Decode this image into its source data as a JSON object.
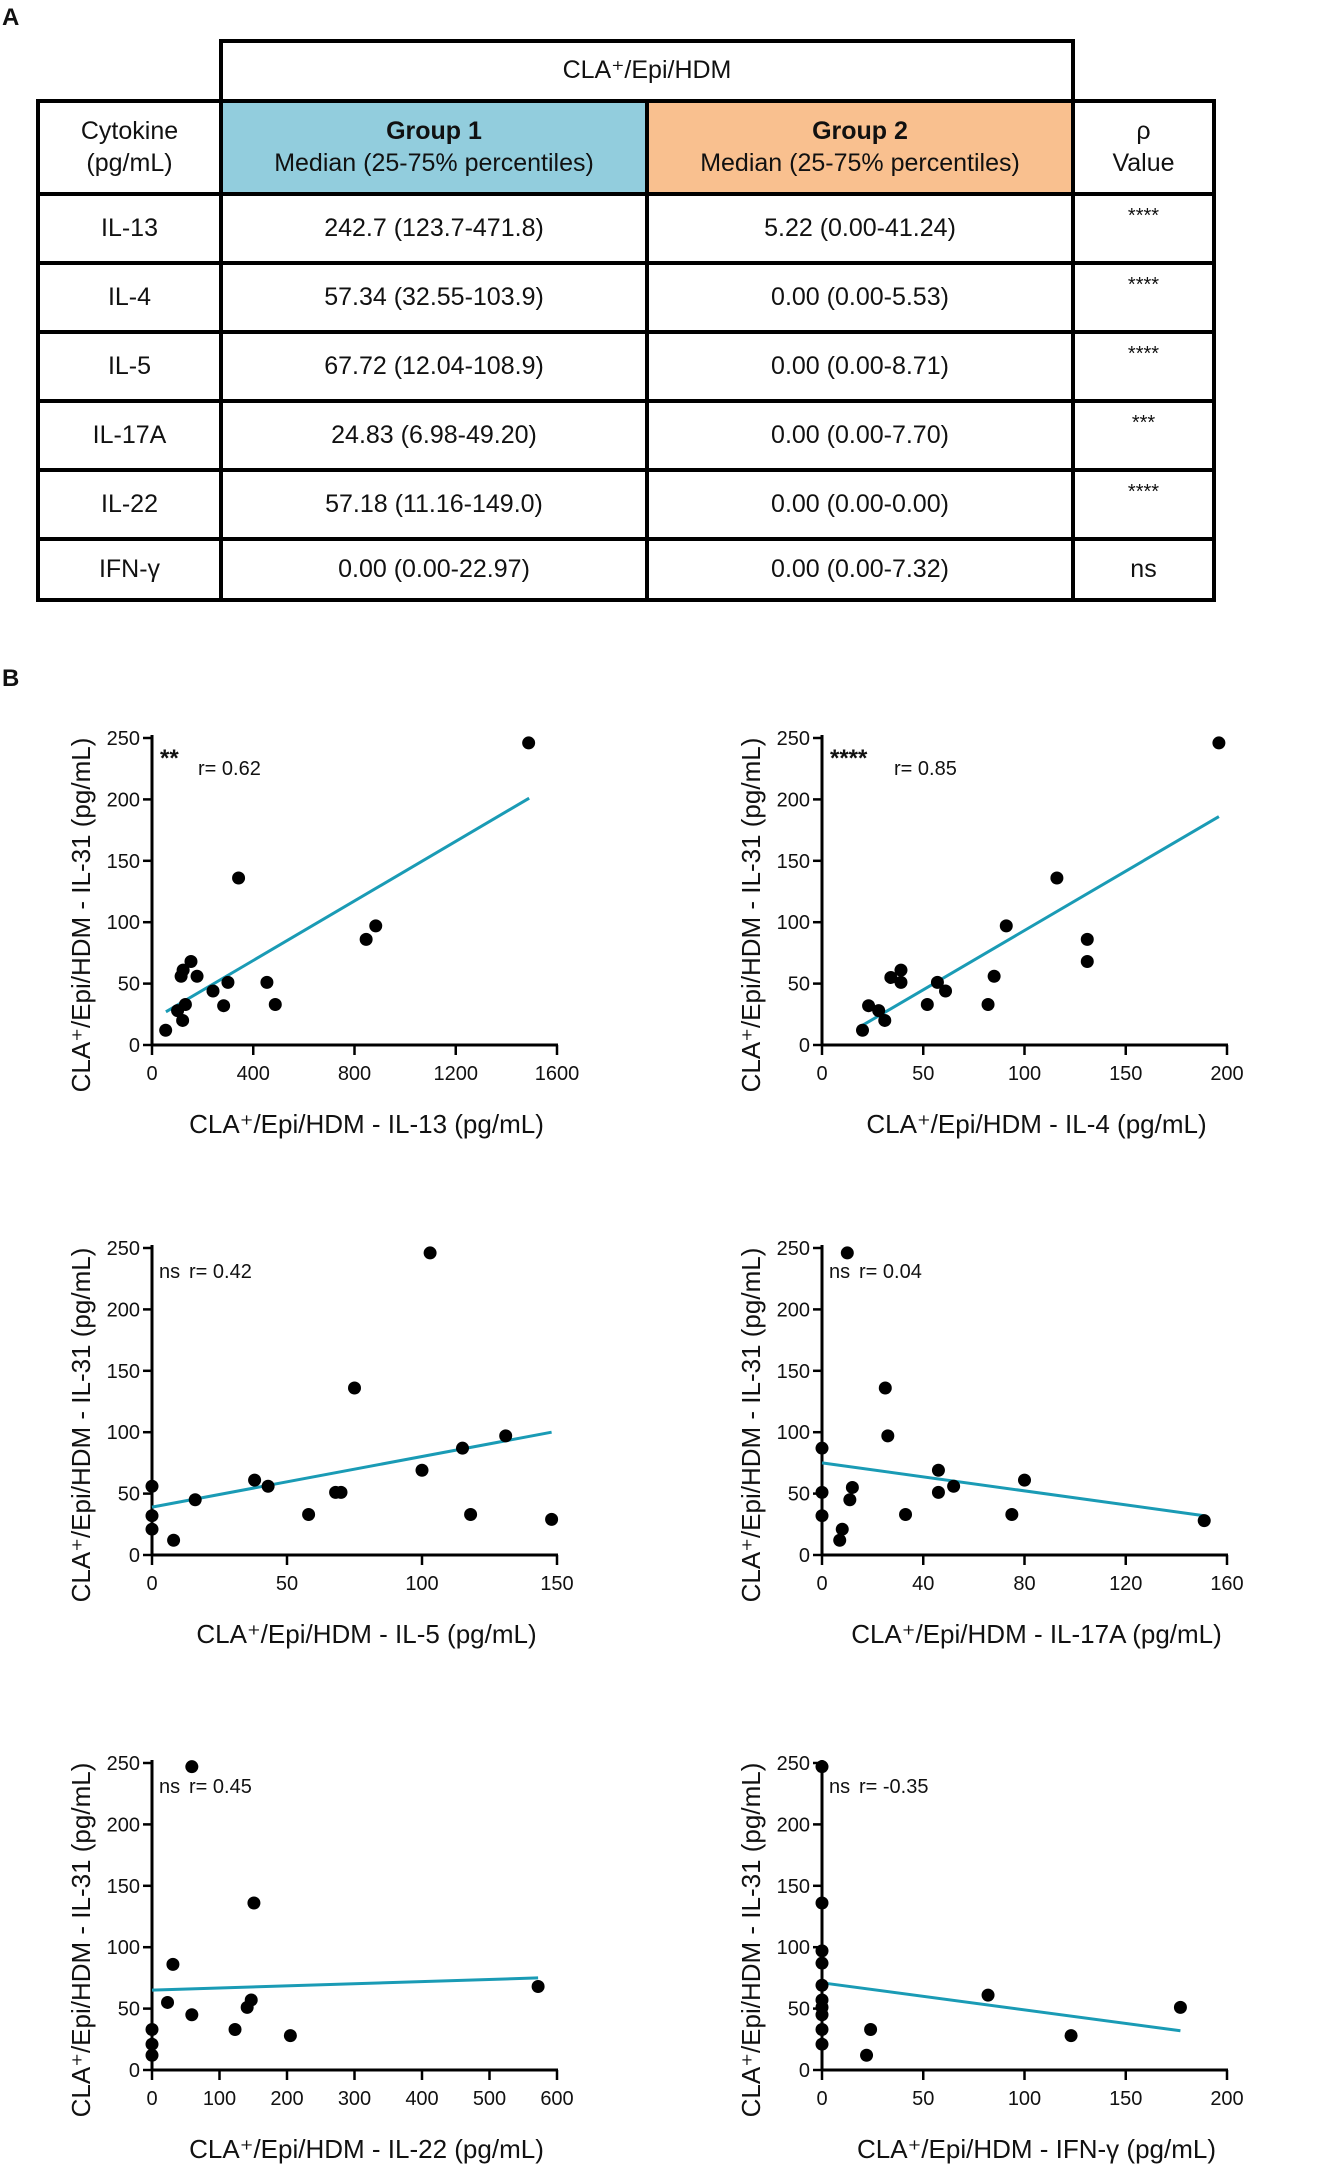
{
  "panels": {
    "a": "A",
    "b": "B"
  },
  "table": {
    "super_header": "CLA⁺/Epi/HDM",
    "col_cytokine": [
      "Cytokine",
      "(pg/mL)"
    ],
    "group1": {
      "title": "Group 1",
      "subtitle": "Median (25-75% percentiles)"
    },
    "group2": {
      "title": "Group 2",
      "subtitle": "Median (25-75% percentiles)"
    },
    "col_p": [
      "ρ",
      "Value"
    ],
    "rows": [
      {
        "cytokine": "IL-13",
        "g1": "242.7 (123.7-471.8)",
        "g2": "5.22 (0.00-41.24)",
        "p": "****"
      },
      {
        "cytokine": "IL-4",
        "g1": "57.34 (32.55-103.9)",
        "g2": "0.00 (0.00-5.53)",
        "p": "****"
      },
      {
        "cytokine": "IL-5",
        "g1": "67.72 (12.04-108.9)",
        "g2": "0.00 (0.00-8.71)",
        "p": "****"
      },
      {
        "cytokine": "IL-17A",
        "g1": "24.83 (6.98-49.20)",
        "g2": "0.00 (0.00-7.70)",
        "p": "***"
      },
      {
        "cytokine": "IL-22",
        "g1": "57.18 (11.16-149.0)",
        "g2": "0.00 (0.00-0.00)",
        "p": "****"
      },
      {
        "cytokine": "IFN-γ",
        "g1": "0.00 (0.00-22.97)",
        "g2": "0.00 (0.00-7.32)",
        "p": "ns"
      }
    ],
    "colors": {
      "group1": "#92cddd",
      "group2": "#f9c08f"
    }
  },
  "chart_data": [
    {
      "type": "scatter",
      "xlabel": "CLA⁺/Epi/HDM - IL-13 (pg/mL)",
      "ylabel": "CLA⁺/Epi/HDM - IL-31 (pg/mL)",
      "sig": "**",
      "r": "r= 0.62",
      "xlim": [
        0,
        1600
      ],
      "ylim": [
        0,
        250
      ],
      "xticks": [
        0,
        400,
        800,
        1200,
        1600
      ],
      "yticks": [
        0,
        50,
        100,
        150,
        200,
        250
      ],
      "points": [
        [
          1488,
          246
        ],
        [
          342,
          136
        ],
        [
          846,
          86
        ],
        [
          884,
          97
        ],
        [
          154,
          68
        ],
        [
          123,
          61
        ],
        [
          115,
          56
        ],
        [
          178,
          56
        ],
        [
          241,
          44
        ],
        [
          300,
          51
        ],
        [
          454,
          51
        ],
        [
          487,
          33
        ],
        [
          283,
          32
        ],
        [
          132,
          33
        ],
        [
          101,
          28
        ],
        [
          121,
          20
        ],
        [
          54,
          12
        ]
      ],
      "fit": [
        [
          55,
          27
        ],
        [
          1490,
          201
        ]
      ],
      "line_color": "#1a9bb5"
    },
    {
      "type": "scatter",
      "xlabel": "CLA⁺/Epi/HDM - IL-4 (pg/mL)",
      "ylabel": "CLA⁺/Epi/HDM - IL-31 (pg/mL)",
      "sig": "****",
      "r": "r= 0.85",
      "xlim": [
        0,
        200
      ],
      "ylim": [
        0,
        250
      ],
      "xticks": [
        0,
        50,
        100,
        150,
        200
      ],
      "yticks": [
        0,
        50,
        100,
        150,
        200,
        250
      ],
      "points": [
        [
          196,
          246
        ],
        [
          116,
          136
        ],
        [
          91,
          97
        ],
        [
          131,
          86
        ],
        [
          131,
          68
        ],
        [
          85,
          56
        ],
        [
          82,
          33
        ],
        [
          57,
          51
        ],
        [
          61,
          44
        ],
        [
          52,
          33
        ],
        [
          39,
          61
        ],
        [
          39,
          51
        ],
        [
          34,
          55
        ],
        [
          23,
          32
        ],
        [
          28,
          28
        ],
        [
          31,
          20
        ],
        [
          20,
          12
        ]
      ],
      "fit": [
        [
          20,
          16
        ],
        [
          196,
          186
        ]
      ],
      "line_color": "#1a9bb5"
    },
    {
      "type": "scatter",
      "xlabel": "CLA⁺/Epi/HDM - IL-5 (pg/mL)",
      "ylabel": "CLA⁺/Epi/HDM - IL-31 (pg/mL)",
      "sig": "ns",
      "r": "r= 0.42",
      "xlim": [
        0,
        150
      ],
      "ylim": [
        0,
        250
      ],
      "xticks": [
        0,
        50,
        100,
        150
      ],
      "yticks": [
        0,
        50,
        100,
        150,
        200,
        250
      ],
      "points": [
        [
          103,
          246
        ],
        [
          75,
          136
        ],
        [
          131,
          97
        ],
        [
          115,
          87
        ],
        [
          100,
          69
        ],
        [
          38,
          61
        ],
        [
          43,
          56
        ],
        [
          0,
          56
        ],
        [
          16,
          45
        ],
        [
          68,
          51
        ],
        [
          70,
          51
        ],
        [
          58,
          33
        ],
        [
          118,
          33
        ],
        [
          148,
          29
        ],
        [
          0,
          32
        ],
        [
          0,
          21
        ],
        [
          8,
          12
        ]
      ],
      "fit": [
        [
          0,
          39
        ],
        [
          148,
          100
        ]
      ],
      "line_color": "#1a9bb5"
    },
    {
      "type": "scatter",
      "xlabel": "CLA⁺/Epi/HDM - IL-17A (pg/mL)",
      "ylabel": "CLA⁺/Epi/HDM - IL-31 (pg/mL)",
      "sig": "ns",
      "r": "r= 0.04",
      "xlim": [
        0,
        160
      ],
      "ylim": [
        0,
        250
      ],
      "xticks": [
        0,
        40,
        80,
        120,
        160
      ],
      "yticks": [
        0,
        50,
        100,
        150,
        200,
        250
      ],
      "points": [
        [
          10,
          246
        ],
        [
          25,
          136
        ],
        [
          26,
          97
        ],
        [
          0,
          87
        ],
        [
          46,
          69
        ],
        [
          80,
          61
        ],
        [
          52,
          56
        ],
        [
          12,
          55
        ],
        [
          0,
          51
        ],
        [
          46,
          51
        ],
        [
          11,
          45
        ],
        [
          33,
          33
        ],
        [
          75,
          33
        ],
        [
          0,
          32
        ],
        [
          151,
          28
        ],
        [
          8,
          21
        ],
        [
          7,
          12
        ]
      ],
      "fit": [
        [
          0,
          75
        ],
        [
          151,
          32
        ]
      ],
      "line_color": "#1a9bb5"
    },
    {
      "type": "scatter",
      "xlabel": "CLA⁺/Epi/HDM - IL-22 (pg/mL)",
      "ylabel": "CLA⁺/Epi/HDM - IL-31 (pg/mL)",
      "sig": "ns",
      "r": "r= 0.45",
      "xlim": [
        0,
        600
      ],
      "ylim": [
        0,
        250
      ],
      "xticks": [
        0,
        100,
        200,
        300,
        400,
        500,
        600
      ],
      "yticks": [
        0,
        50,
        100,
        150,
        200,
        250
      ],
      "points": [
        [
          59,
          247
        ],
        [
          151,
          136
        ],
        [
          31,
          86
        ],
        [
          572,
          68
        ],
        [
          23,
          55
        ],
        [
          147,
          57
        ],
        [
          141,
          51
        ],
        [
          59,
          45
        ],
        [
          123,
          33
        ],
        [
          205,
          28
        ],
        [
          0,
          33
        ],
        [
          0,
          21
        ],
        [
          0,
          12
        ]
      ],
      "fit": [
        [
          0,
          65
        ],
        [
          572,
          75
        ]
      ],
      "line_color": "#1a9bb5"
    },
    {
      "type": "scatter",
      "xlabel": "CLA⁺/Epi/HDM - IFN-γ (pg/mL)",
      "ylabel": "CLA⁺/Epi/HDM - IL-31 (pg/mL)",
      "sig": "ns",
      "r": "r= -0.35",
      "xlim": [
        0,
        200
      ],
      "ylim": [
        0,
        250
      ],
      "xticks": [
        0,
        50,
        100,
        150,
        200
      ],
      "yticks": [
        0,
        50,
        100,
        150,
        200,
        250
      ],
      "points": [
        [
          0,
          247
        ],
        [
          0,
          136
        ],
        [
          0,
          97
        ],
        [
          0,
          87
        ],
        [
          0,
          69
        ],
        [
          0,
          57
        ],
        [
          0,
          51
        ],
        [
          0,
          45
        ],
        [
          0,
          33
        ],
        [
          0,
          21
        ],
        [
          82,
          61
        ],
        [
          24,
          33
        ],
        [
          22,
          12
        ],
        [
          123,
          28
        ],
        [
          177,
          51
        ]
      ],
      "fit": [
        [
          0,
          71
        ],
        [
          177,
          32
        ]
      ],
      "line_color": "#1a9bb5"
    }
  ]
}
